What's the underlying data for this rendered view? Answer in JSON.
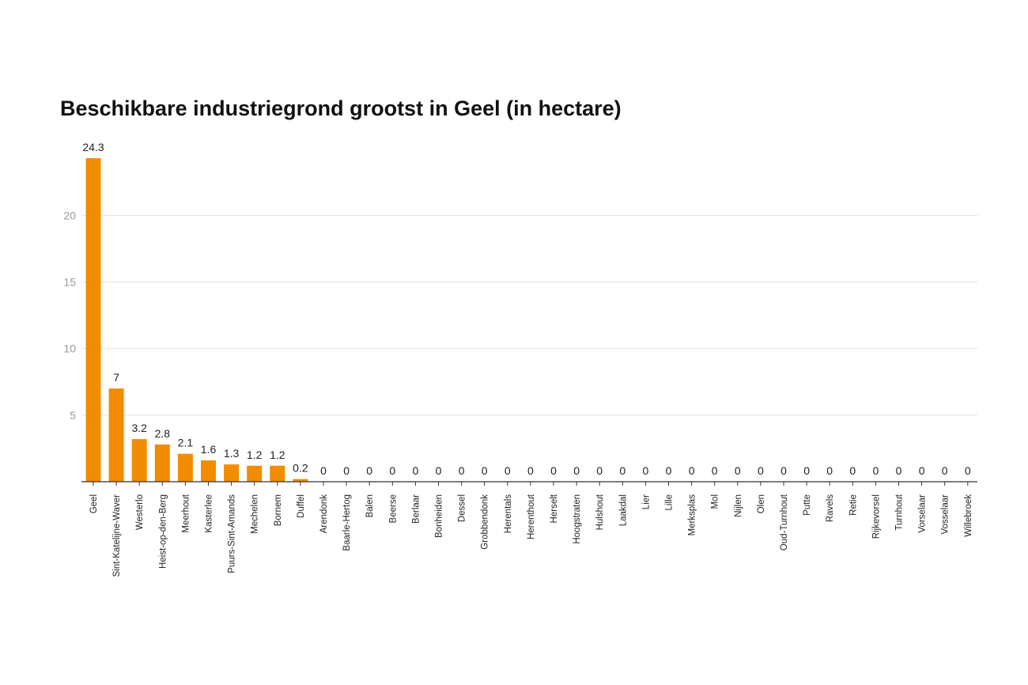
{
  "chart_data": {
    "type": "bar",
    "title": "Beschikbare industriegrond grootst in Geel (in hectare)",
    "xlabel": "",
    "ylabel": "",
    "ylim": [
      0,
      24.3
    ],
    "yticks": [
      5,
      10,
      15,
      20
    ],
    "grid": true,
    "bar_color": "#f28c00",
    "categories": [
      "Geel",
      "Sint-Katelijne-Waver",
      "Westerlo",
      "Heist-op-den-Berg",
      "Meerhout",
      "Kasterlee",
      "Puurs-Sint-Amands",
      "Mechelen",
      "Bornem",
      "Duffel",
      "Arendonk",
      "Baarle-Hertog",
      "Balen",
      "Beerse",
      "Berlaar",
      "Bonheiden",
      "Dessel",
      "Grobbendonk",
      "Herentals",
      "Herenthout",
      "Herselt",
      "Hoogstraten",
      "Hulshout",
      "Laakdal",
      "Lier",
      "Lille",
      "Merksplas",
      "Mol",
      "Nijlen",
      "Olen",
      "Oud-Turnhout",
      "Putte",
      "Ravels",
      "Retie",
      "Rijkevorsel",
      "Turnhout",
      "Vorselaar",
      "Vosselaar",
      "Willebroek"
    ],
    "values": [
      24.3,
      7,
      3.2,
      2.8,
      2.1,
      1.6,
      1.3,
      1.2,
      1.2,
      0.2,
      0,
      0,
      0,
      0,
      0,
      0,
      0,
      0,
      0,
      0,
      0,
      0,
      0,
      0,
      0,
      0,
      0,
      0,
      0,
      0,
      0,
      0,
      0,
      0,
      0,
      0,
      0,
      0,
      0
    ],
    "data_labels": [
      "24.3",
      "7",
      "3.2",
      "2.8",
      "2.1",
      "1.6",
      "1.3",
      "1.2",
      "1.2",
      "0.2",
      "0",
      "0",
      "0",
      "0",
      "0",
      "0",
      "0",
      "0",
      "0",
      "0",
      "0",
      "0",
      "0",
      "0",
      "0",
      "0",
      "0",
      "0",
      "0",
      "0",
      "0",
      "0",
      "0",
      "0",
      "0",
      "0",
      "0",
      "0",
      "0"
    ]
  }
}
